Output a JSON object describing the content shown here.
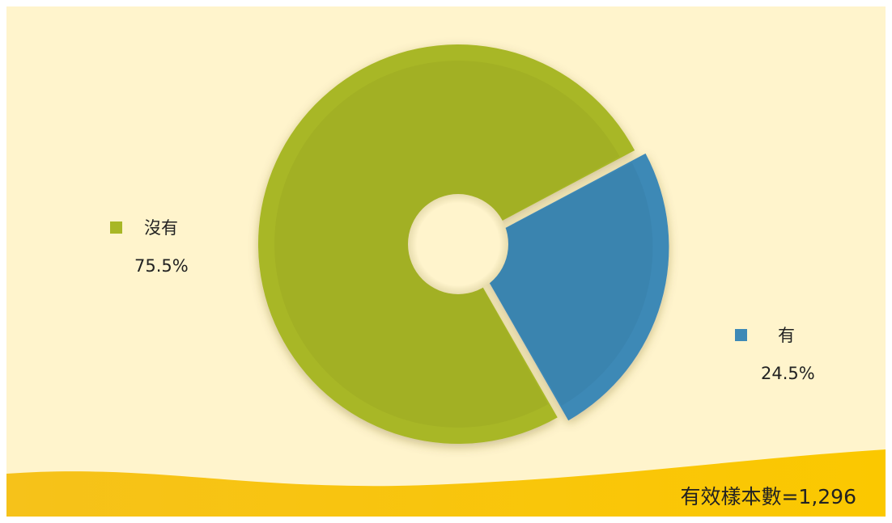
{
  "chart_data": {
    "type": "pie",
    "style": "donut-exploded",
    "categories": [
      "沒有",
      "有"
    ],
    "values": [
      75.5,
      24.5
    ],
    "value_labels": [
      "75.5%",
      "24.5%"
    ],
    "colors": [
      "#a8b726",
      "#3e89b6"
    ],
    "title": "",
    "legend": "beside-slices",
    "note": "有效樣本數=1,296"
  }
}
